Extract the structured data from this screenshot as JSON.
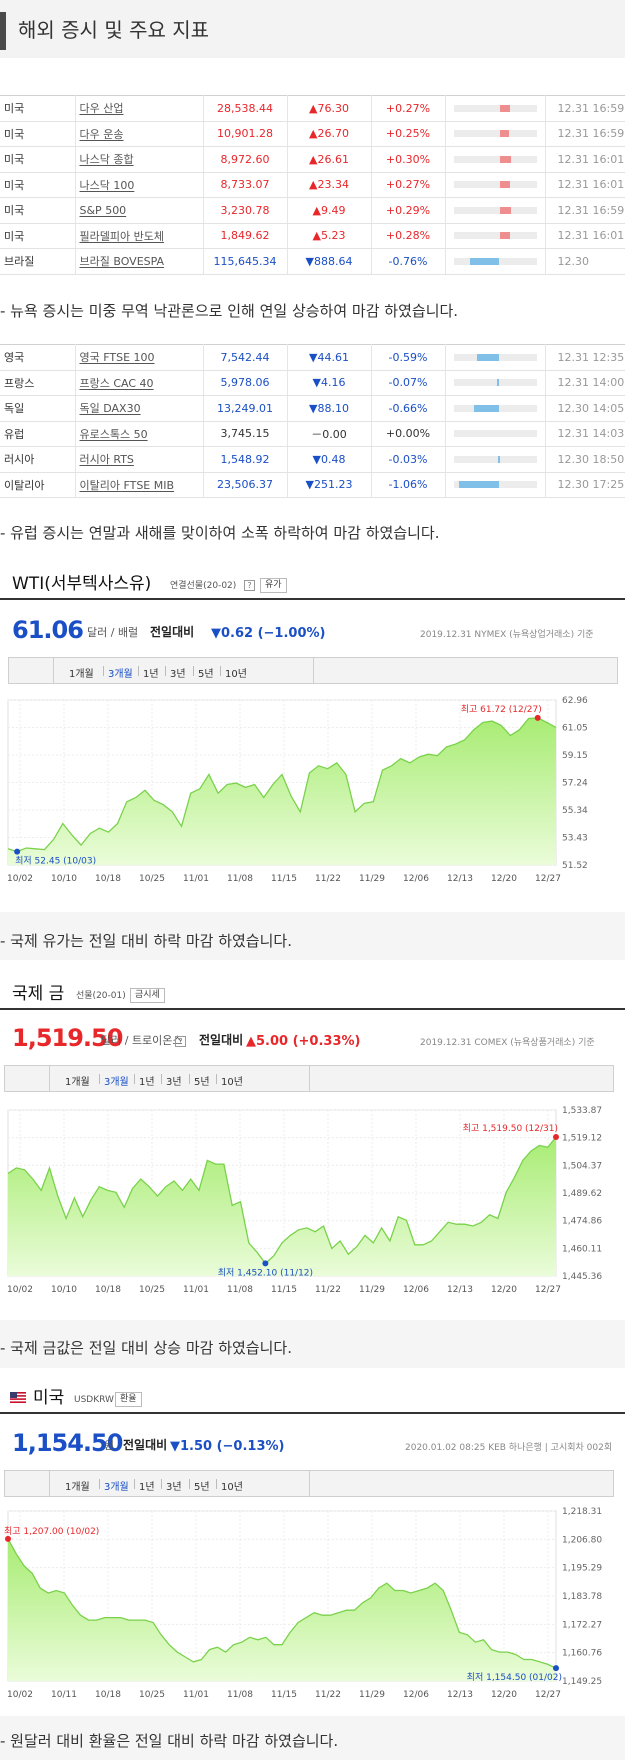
{
  "page_title": "해외 증시 및 주요 지표",
  "us_markets": [
    {
      "country": "미국",
      "name": "다우 산업",
      "price": "28,538.44",
      "change": "▲76.30",
      "pct": "+0.27%",
      "dir": "up",
      "bar": 0.27,
      "time": "12.31 16:59"
    },
    {
      "country": "미국",
      "name": "다우 운송",
      "price": "10,901.28",
      "change": "▲26.70",
      "pct": "+0.25%",
      "dir": "up",
      "bar": 0.25,
      "time": "12.31 16:59"
    },
    {
      "country": "미국",
      "name": "나스닥 종합",
      "price": "8,972.60",
      "change": "▲26.61",
      "pct": "+0.30%",
      "dir": "up",
      "bar": 0.3,
      "time": "12.31 16:01"
    },
    {
      "country": "미국",
      "name": "나스닥 100",
      "price": "8,733.07",
      "change": "▲23.34",
      "pct": "+0.27%",
      "dir": "up",
      "bar": 0.27,
      "time": "12.31 16:01"
    },
    {
      "country": "미국",
      "name": "S&P 500",
      "price": "3,230.78",
      "change": "▲9.49",
      "pct": "+0.29%",
      "dir": "up",
      "bar": 0.29,
      "time": "12.31 16:59"
    },
    {
      "country": "미국",
      "name": "필라델피아 반도체",
      "price": "1,849.62",
      "change": "▲5.23",
      "pct": "+0.28%",
      "dir": "up",
      "bar": 0.28,
      "time": "12.31 16:01"
    },
    {
      "country": "브라질",
      "name": "브라질 BOVESPA",
      "price": "115,645.34",
      "change": "▼888.64",
      "pct": "-0.76%",
      "dir": "dn",
      "bar": 0.76,
      "time": "12.30"
    }
  ],
  "note1": "- 뉴욕 증시는 미중 무역 낙관론으로 인해 연일 상승하여 마감 하였습니다.",
  "eu_markets": [
    {
      "country": "영국",
      "name": "영국 FTSE 100",
      "price": "7,542.44",
      "change": "▼44.61",
      "pct": "-0.59%",
      "dir": "dn",
      "bar": 0.59,
      "time": "12.31 12:35"
    },
    {
      "country": "프랑스",
      "name": "프랑스 CAC 40",
      "price": "5,978.06",
      "change": "▼4.16",
      "pct": "-0.07%",
      "dir": "dn",
      "bar": 0.07,
      "time": "12.31 14:00"
    },
    {
      "country": "독일",
      "name": "독일 DAX30",
      "price": "13,249.01",
      "change": "▼88.10",
      "pct": "-0.66%",
      "dir": "dn",
      "bar": 0.66,
      "time": "12.30 14:05"
    },
    {
      "country": "유럽",
      "name": "유로스톡스 50",
      "price": "3,745.15",
      "change": "－0.00",
      "pct": "+0.00%",
      "dir": "fl",
      "bar": 0,
      "time": "12.31 14:03"
    },
    {
      "country": "러시아",
      "name": "러시아 RTS",
      "price": "1,548.92",
      "change": "▼0.48",
      "pct": "-0.03%",
      "dir": "dn",
      "bar": 0.03,
      "time": "12.30 18:50"
    },
    {
      "country": "이탈리아",
      "name": "이탈리아 FTSE MIB",
      "price": "23,506.37",
      "change": "▼251.23",
      "pct": "-1.06%",
      "dir": "dn",
      "bar": 1.06,
      "time": "12.30 17:25"
    }
  ],
  "note2": "- 유럽 증시는 연말과 새해를 맞이하여 소폭 하락하여 마감 하였습니다.",
  "range_tabs": [
    "1개월",
    "3개월",
    "1년",
    "3년",
    "5년",
    "10년"
  ],
  "wti": {
    "name": "WTI(서부텍사스유)",
    "sub": "연결선물(20-02)",
    "q": "?",
    "btn": "유가",
    "price": "61.06",
    "unit": "달러 / 배럴",
    "chg_label": "전일대비",
    "chg": "▼0.62 (−1.00%)",
    "meta": "2019.12.31  NYMEX (뉴욕상업거래소) 기준",
    "note": "- 국제 유가는 전일 대비 하락 마감 하였습니다."
  },
  "gold": {
    "name": "국제 금",
    "sub": "선물(20-01)",
    "btn": "금시세",
    "price": "1,519.50",
    "unit": "달러 / 트로이온스",
    "q": "?",
    "chg_label": "전일대비",
    "chg": "▲5.00 (+0.33%)",
    "meta": "2019.12.31  COMEX (뉴욕상품거래소) 기준",
    "note": "- 국제 금값은 전일 대비 상승 마감 하였습니다."
  },
  "usd": {
    "name": "미국",
    "sub": "USDKRW",
    "btn": "환율",
    "price": "1,154.50",
    "unit": "원",
    "chg_label": "전일대비",
    "chg": "▼1.50 (−0.13%)",
    "meta": "2020.01.02 08:25  KEB 하나은행  |  고시회차 002회",
    "note": "- 원달러 대비 환율은 전일 대비 하락 마감 하였습니다."
  },
  "colors": {
    "up": "#e8272b",
    "down": "#1a4fc5",
    "area": "#b9f08e",
    "line": "#7ad24b"
  },
  "chart_data": [
    {
      "type": "area",
      "series_label": "WTI",
      "x_ticks": [
        "10/02",
        "10/10",
        "10/18",
        "10/25",
        "11/01",
        "11/08",
        "11/15",
        "11/22",
        "11/29",
        "12/06",
        "12/13",
        "12/20",
        "12/27"
      ],
      "y_ticks": [
        "62.96",
        "61.05",
        "59.15",
        "57.24",
        "55.34",
        "53.43",
        "51.52"
      ],
      "ylim": [
        51.52,
        62.96
      ],
      "values": [
        52.64,
        52.45,
        52.7,
        52.64,
        52.59,
        53.3,
        54.4,
        53.6,
        52.9,
        53.7,
        54.07,
        53.8,
        54.4,
        55.9,
        56.2,
        56.7,
        56.0,
        55.7,
        55.2,
        54.2,
        56.5,
        56.8,
        57.8,
        56.5,
        57.1,
        57.2,
        56.9,
        57.1,
        56.2,
        57.1,
        57.8,
        56.3,
        55.2,
        57.9,
        58.4,
        58.2,
        58.6,
        57.8,
        55.2,
        55.8,
        55.9,
        58.1,
        58.4,
        58.9,
        58.6,
        59.0,
        59.2,
        59.1,
        59.7,
        59.9,
        60.2,
        60.9,
        61.4,
        61.5,
        61.2,
        60.5,
        60.9,
        61.68,
        61.72,
        61.4,
        61.06
      ],
      "high": {
        "label": "최고 61.72 (12/27)",
        "index": 58,
        "value": 61.72
      },
      "low": {
        "label": "최저 52.45 (10/03)",
        "index": 1,
        "value": 52.45
      }
    },
    {
      "type": "area",
      "series_label": "Gold",
      "x_ticks": [
        "10/02",
        "10/10",
        "10/18",
        "10/25",
        "11/01",
        "11/08",
        "11/15",
        "11/22",
        "11/29",
        "12/06",
        "12/13",
        "12/20",
        "12/27"
      ],
      "y_ticks": [
        "1,533.87",
        "1,519.12",
        "1,504.37",
        "1,489.62",
        "1,474.86",
        "1,460.11",
        "1,445.36"
      ],
      "ylim": [
        1445.36,
        1533.87
      ],
      "values": [
        1500,
        1503,
        1502,
        1497,
        1491,
        1503,
        1488,
        1476,
        1487,
        1477,
        1486,
        1493,
        1491,
        1490,
        1482,
        1492,
        1497,
        1493,
        1488,
        1493,
        1496,
        1491,
        1497,
        1491,
        1507,
        1505,
        1505,
        1483,
        1485,
        1463,
        1458,
        1452.1,
        1456,
        1463,
        1467,
        1470,
        1471,
        1469,
        1472,
        1460,
        1464,
        1457,
        1461,
        1467,
        1463,
        1471,
        1464,
        1477,
        1475,
        1462,
        1462,
        1464,
        1469,
        1474,
        1473,
        1473,
        1472,
        1474,
        1478,
        1476,
        1490,
        1498,
        1507,
        1512,
        1515,
        1514,
        1519.5
      ],
      "high": {
        "label": "최고 1,519.50 (12/31)",
        "index": 66,
        "value": 1519.5
      },
      "low": {
        "label": "최저 1,452.10 (11/12)",
        "index": 31,
        "value": 1452.1
      }
    },
    {
      "type": "area",
      "series_label": "USDKRW",
      "x_ticks": [
        "10/02",
        "10/11",
        "10/18",
        "10/25",
        "11/01",
        "11/08",
        "11/15",
        "11/22",
        "11/29",
        "12/06",
        "12/13",
        "12/20",
        "12/27"
      ],
      "y_ticks": [
        "1,218.31",
        "1,206.80",
        "1,195.29",
        "1,183.78",
        "1,172.27",
        "1,160.76",
        "1,149.25"
      ],
      "ylim": [
        1149.25,
        1218.31
      ],
      "values": [
        1207,
        1201,
        1196,
        1193,
        1187,
        1185,
        1186,
        1185,
        1180,
        1176,
        1174,
        1174,
        1175,
        1175,
        1175,
        1174,
        1174,
        1174,
        1173,
        1168,
        1164,
        1161,
        1159,
        1157,
        1158,
        1162,
        1163,
        1161,
        1164,
        1165,
        1167,
        1166,
        1167,
        1164,
        1164,
        1169,
        1173,
        1175,
        1177,
        1176,
        1176,
        1177,
        1178,
        1178,
        1181,
        1183,
        1187,
        1189,
        1186,
        1186,
        1185,
        1186,
        1187,
        1189,
        1186,
        1178,
        1169,
        1168,
        1165,
        1166,
        1162,
        1161,
        1161,
        1160,
        1158,
        1158,
        1157,
        1156,
        1154.5
      ],
      "high": {
        "label": "최고 1,207.00 (10/02)",
        "index": 0,
        "value": 1207
      },
      "low": {
        "label": "최저 1,154.50 (01/02)",
        "index": 68,
        "value": 1154.5
      }
    }
  ]
}
